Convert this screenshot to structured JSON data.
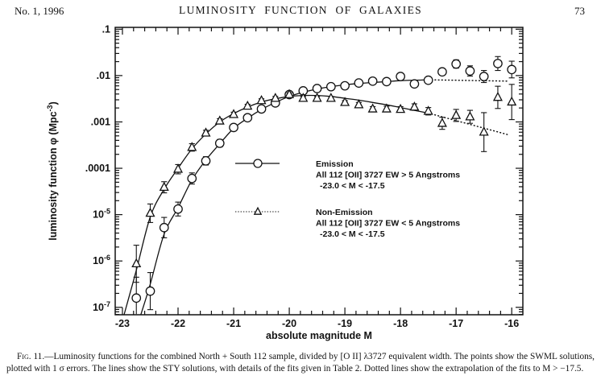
{
  "header": {
    "issue": "No. 1, 1996",
    "running_title": "LUMINOSITY FUNCTION OF GALAXIES",
    "page_number": "73"
  },
  "chart_data": {
    "type": "scatter",
    "title": "",
    "xlabel": "absolute magnitude M",
    "ylabel": {
      "pre": "luminosity function φ (Mpc",
      "sup": "-3",
      "post": ")"
    },
    "x_axis": {
      "range": [
        -23.13,
        -15.8
      ],
      "major_ticks": [
        -23,
        -22,
        -21,
        -20,
        -19,
        -18,
        -17,
        -16
      ],
      "tick_labels": [
        "-23",
        "-22",
        "-21",
        "-20",
        "-19",
        "-18",
        "-17",
        "-16"
      ],
      "minor_step": 0.2
    },
    "y_axis": {
      "scale": "log",
      "log_range": [
        -7.16,
        -0.96
      ],
      "tick_labels": [
        {
          "log": -1,
          "text": ".1"
        },
        {
          "log": -2,
          "text": ".01"
        },
        {
          "log": -3,
          "text": ".001"
        },
        {
          "log": -4,
          "text": ".0001"
        },
        {
          "log": -5,
          "base": "10",
          "sup": "-5"
        },
        {
          "log": -6,
          "base": "10",
          "sup": "-6"
        },
        {
          "log": -7,
          "base": "10",
          "sup": "-7"
        }
      ]
    },
    "series": [
      {
        "name": "Emission",
        "marker": "circle",
        "points": [
          [
            -22.75,
            -6.8,
            0.45
          ],
          [
            -22.5,
            -6.65,
            0.4
          ],
          [
            -22.25,
            -5.28,
            0.22
          ],
          [
            -22.0,
            -4.88,
            0.15
          ],
          [
            -21.75,
            -4.22,
            0.12
          ],
          [
            -21.5,
            -3.84,
            0.09
          ],
          [
            -21.25,
            -3.46,
            0.08
          ],
          [
            -21.0,
            -3.12,
            0.07
          ],
          [
            -20.75,
            -2.91,
            0.06
          ],
          [
            -20.5,
            -2.72,
            0.05
          ],
          [
            -20.25,
            -2.59,
            0.05
          ],
          [
            -20.0,
            -2.41,
            0.04
          ],
          [
            -19.75,
            -2.33,
            0.04
          ],
          [
            -19.5,
            -2.28,
            0.04
          ],
          [
            -19.25,
            -2.24,
            0.04
          ],
          [
            -19.0,
            -2.22,
            0.04
          ],
          [
            -18.75,
            -2.16,
            0.04
          ],
          [
            -18.5,
            -2.12,
            0.04
          ],
          [
            -18.25,
            -2.13,
            0.05
          ],
          [
            -18.0,
            -2.02,
            0.05
          ],
          [
            -17.75,
            -2.18,
            0.06
          ],
          [
            -17.5,
            -2.1,
            0.06
          ],
          [
            -17.25,
            -1.92,
            0.07
          ],
          [
            -17.0,
            -1.75,
            0.09
          ],
          [
            -16.75,
            -1.9,
            0.11
          ],
          [
            -16.5,
            -2.02,
            0.13
          ],
          [
            -16.25,
            -1.74,
            0.15
          ],
          [
            -16.0,
            -1.87,
            0.18
          ]
        ],
        "fit_solid": [
          [
            -22.67,
            -7.16
          ],
          [
            -22.5,
            -6.5
          ],
          [
            -22.25,
            -5.42
          ],
          [
            -22.0,
            -4.85
          ],
          [
            -21.75,
            -4.25
          ],
          [
            -21.5,
            -3.82
          ],
          [
            -21.25,
            -3.47
          ],
          [
            -21.0,
            -3.14
          ],
          [
            -20.75,
            -2.92
          ],
          [
            -20.5,
            -2.73
          ],
          [
            -20.25,
            -2.58
          ],
          [
            -20.0,
            -2.45
          ],
          [
            -19.75,
            -2.36
          ],
          [
            -19.5,
            -2.29
          ],
          [
            -19.25,
            -2.24
          ],
          [
            -19.0,
            -2.2
          ],
          [
            -18.75,
            -2.17
          ],
          [
            -18.5,
            -2.15
          ],
          [
            -18.25,
            -2.13
          ],
          [
            -18.0,
            -2.11
          ],
          [
            -17.75,
            -2.1
          ],
          [
            -17.5,
            -2.09
          ]
        ],
        "fit_dotted": [
          [
            -17.5,
            -2.09
          ],
          [
            -16.05,
            -2.12
          ]
        ]
      },
      {
        "name": "Non-Emission",
        "marker": "triangle",
        "points": [
          [
            -22.75,
            -6.06,
            0.4
          ],
          [
            -22.5,
            -4.97,
            0.2
          ],
          [
            -22.25,
            -4.41,
            0.12
          ],
          [
            -22.0,
            -4.02,
            0.1
          ],
          [
            -21.75,
            -3.55,
            0.08
          ],
          [
            -21.5,
            -3.24,
            0.06
          ],
          [
            -21.25,
            -2.98,
            0.05
          ],
          [
            -21.0,
            -2.84,
            0.05
          ],
          [
            -20.75,
            -2.66,
            0.04
          ],
          [
            -20.5,
            -2.54,
            0.04
          ],
          [
            -20.25,
            -2.49,
            0.04
          ],
          [
            -20.0,
            -2.41,
            0.04
          ],
          [
            -19.75,
            -2.49,
            0.04
          ],
          [
            -19.5,
            -2.49,
            0.04
          ],
          [
            -19.25,
            -2.49,
            0.04
          ],
          [
            -19.0,
            -2.58,
            0.04
          ],
          [
            -18.75,
            -2.63,
            0.05
          ],
          [
            -18.5,
            -2.72,
            0.05
          ],
          [
            -18.25,
            -2.72,
            0.06
          ],
          [
            -18.0,
            -2.73,
            0.06
          ],
          [
            -17.75,
            -2.68,
            0.07
          ],
          [
            -17.5,
            -2.77,
            0.08
          ],
          [
            -17.25,
            -3.03,
            0.13
          ],
          [
            -17.0,
            -2.86,
            0.13
          ],
          [
            -16.75,
            -2.89,
            0.14
          ],
          [
            -16.5,
            -3.22,
            0.42
          ],
          [
            -16.25,
            -2.47,
            0.24
          ],
          [
            -16.0,
            -2.57,
            0.38
          ]
        ],
        "fit_solid": [
          [
            -22.97,
            -7.16
          ],
          [
            -22.75,
            -6.2
          ],
          [
            -22.5,
            -5.05
          ],
          [
            -22.25,
            -4.45
          ],
          [
            -22.0,
            -4.0
          ],
          [
            -21.75,
            -3.58
          ],
          [
            -21.5,
            -3.26
          ],
          [
            -21.25,
            -3.0
          ],
          [
            -21.0,
            -2.82
          ],
          [
            -20.75,
            -2.68
          ],
          [
            -20.5,
            -2.57
          ],
          [
            -20.25,
            -2.5
          ],
          [
            -20.0,
            -2.45
          ],
          [
            -19.75,
            -2.43
          ],
          [
            -19.5,
            -2.43
          ],
          [
            -19.25,
            -2.45
          ],
          [
            -19.0,
            -2.49
          ],
          [
            -18.75,
            -2.53
          ],
          [
            -18.5,
            -2.58
          ],
          [
            -18.25,
            -2.63
          ],
          [
            -18.0,
            -2.69
          ],
          [
            -17.75,
            -2.75
          ],
          [
            -17.5,
            -2.81
          ]
        ],
        "fit_dotted": [
          [
            -17.5,
            -2.81
          ],
          [
            -16.05,
            -3.28
          ]
        ]
      }
    ]
  },
  "legend": {
    "entries": [
      {
        "marker": "circle",
        "line_style": "solid",
        "lines": [
          "Emission",
          "All 112 [OII] 3727 EW > 5 Angstroms",
          "-23.0 < M < -17.5"
        ]
      },
      {
        "marker": "triangle",
        "line_style": "dashed",
        "lines": [
          "Non-Emission",
          "All 112 [OII] 3727 EW < 5 Angstroms",
          "-23.0 < M < -17.5"
        ]
      }
    ]
  },
  "caption": {
    "label": "Fig. 11.—",
    "text": "Luminosity functions for the combined North + South 112 sample, divided by [O II] λ3727 equivalent width. The points show the SWML solutions, plotted with 1 σ errors. The lines show the STY solutions, with details of the fits given in Table 2. Dotted lines show the extrapolation of the fits to M > −17.5."
  }
}
